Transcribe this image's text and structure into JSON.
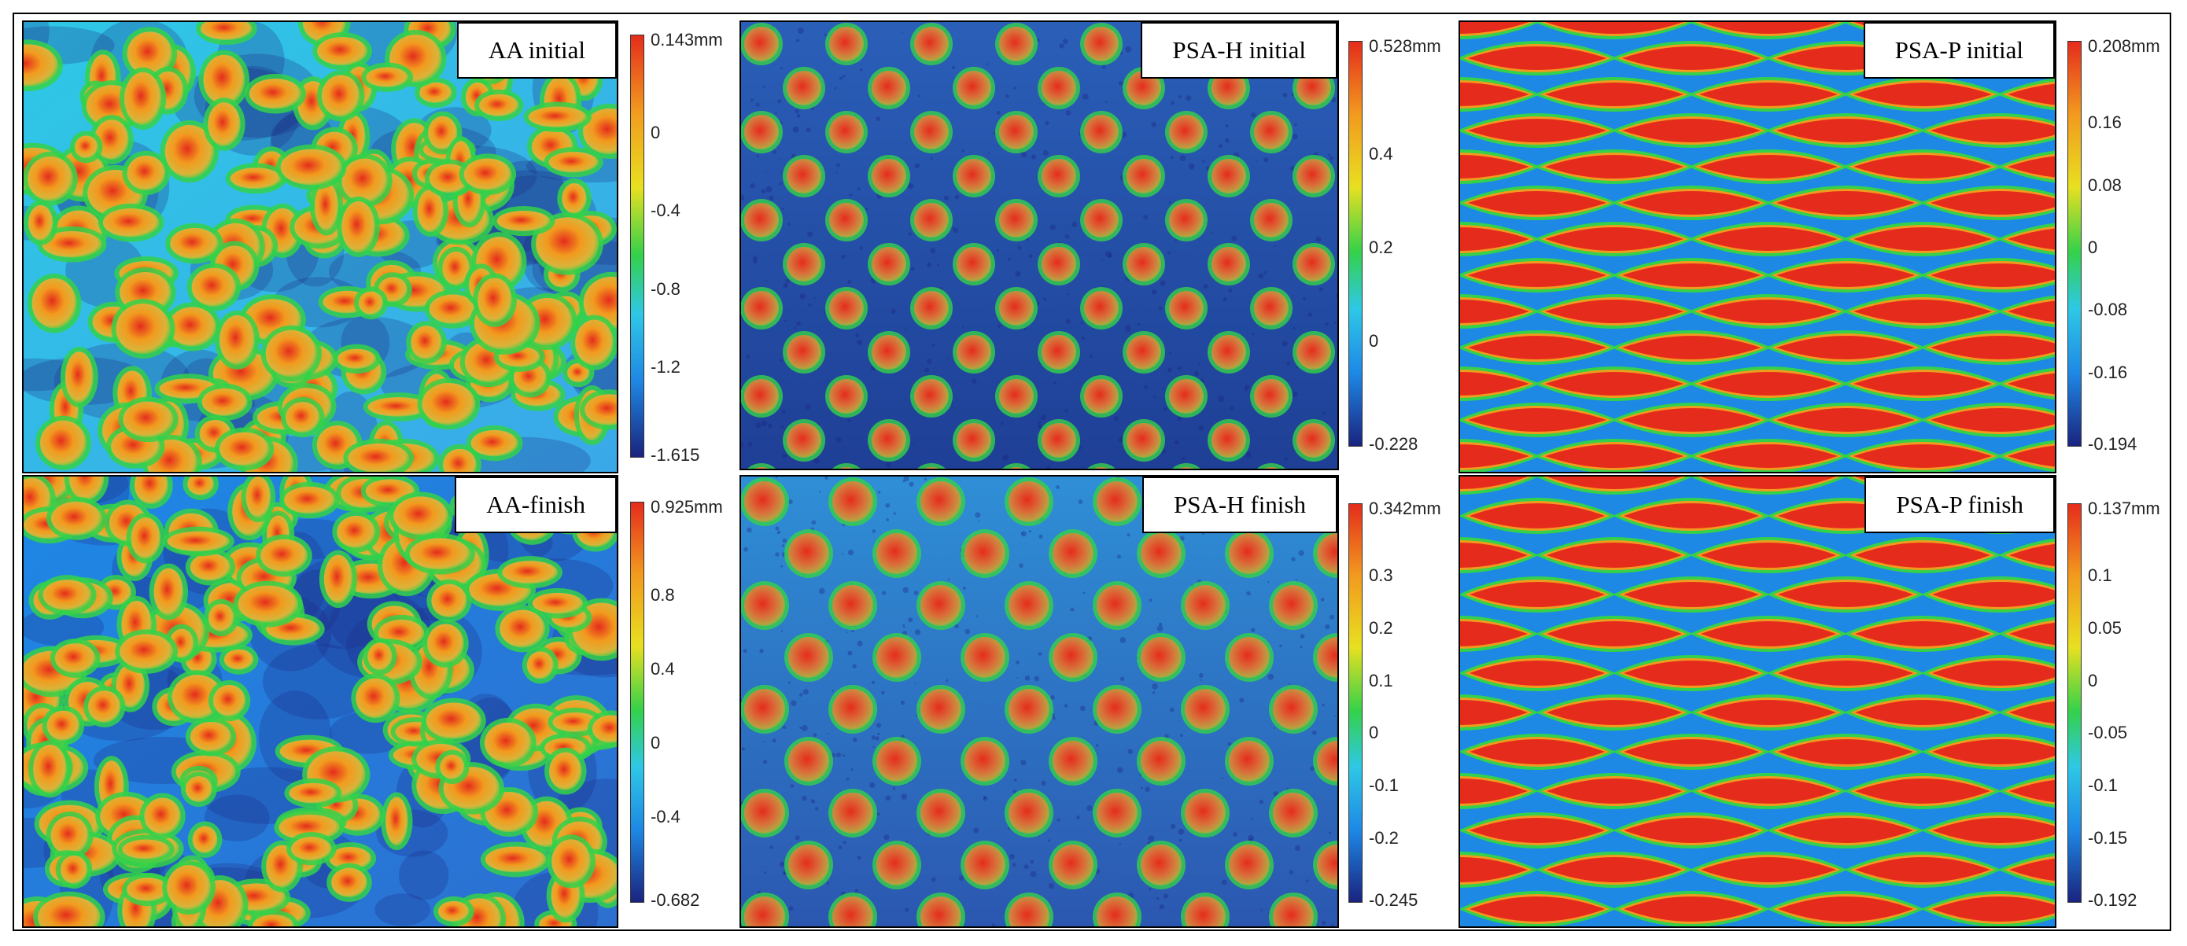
{
  "colors": {
    "low": "#1a237e",
    "midlow": "#1e88e5",
    "cyan": "#2ec8e6",
    "green": "#34d14a",
    "yellow": "#e8e020",
    "orange": "#f29a1e",
    "red": "#e52c1c"
  },
  "panels": [
    {
      "id": "aa-initial",
      "label": "AA initial",
      "scale": {
        "max": "0.143mm",
        "ticks": [
          "0",
          "-0.4",
          "-0.8",
          "-1.2"
        ],
        "min": "-1.615"
      }
    },
    {
      "id": "aa-finish",
      "label": "AA-finish",
      "scale": {
        "max": "0.925mm",
        "ticks": [
          "0.8",
          "0.4",
          "0",
          "-0.4"
        ],
        "min": "-0.682"
      }
    },
    {
      "id": "psah-initial",
      "label": "PSA-H initial",
      "scale": {
        "max": "0.528mm",
        "ticks": [
          "0.4",
          "0.2",
          "0"
        ],
        "min": "-0.228"
      }
    },
    {
      "id": "psah-finish",
      "label": "PSA-H finish",
      "scale": {
        "max": "0.342mm",
        "ticks": [
          "0.3",
          "0.2",
          "0.1",
          "0",
          "-0.1",
          "-0.2"
        ],
        "min": "-0.245"
      }
    },
    {
      "id": "psap-initial",
      "label": "PSA-P initial",
      "scale": {
        "max": "0.208mm",
        "ticks": [
          "0.16",
          "0.08",
          "0",
          "-0.08",
          "-0.16"
        ],
        "min": "-0.194"
      }
    },
    {
      "id": "psap-finish",
      "label": "PSA-P finish",
      "scale": {
        "max": "0.137mm",
        "ticks": [
          "0.1",
          "0.05",
          "0",
          "-0.05",
          "-0.1",
          "-0.15"
        ],
        "min": "-0.192"
      }
    }
  ]
}
